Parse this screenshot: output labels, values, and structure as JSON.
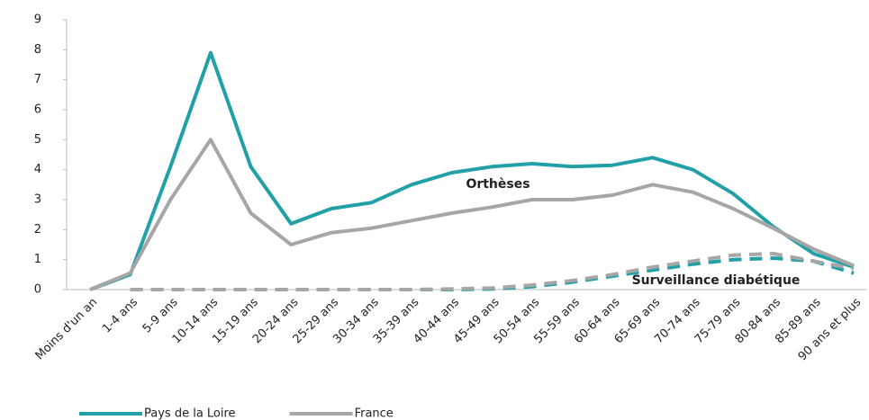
{
  "chart_data": {
    "type": "line",
    "categories": [
      "Moins d'un an",
      "1-4 ans",
      "5-9 ans",
      "10-14 ans",
      "15-19 ans",
      "20-24 ans",
      "25-29 ans",
      "30-34 ans",
      "35-39 ans",
      "40-44 ans",
      "45-49 ans",
      "50-54 ans",
      "55-59 ans",
      "60-64 ans",
      "65-69 ans",
      "70-74 ans",
      "75-79 ans",
      "80-84 ans",
      "85-89 ans",
      "90 ans et plus"
    ],
    "series": [
      {
        "name": "Pays de la Loire",
        "color": "#22a0a8",
        "dashed": false,
        "values": [
          0,
          0.5,
          4.1,
          7.9,
          4.1,
          2.2,
          2.7,
          2.9,
          3.5,
          3.9,
          4.1,
          4.2,
          4.1,
          4.15,
          4.4,
          4.0,
          3.2,
          2.1,
          1.2,
          0.75
        ]
      },
      {
        "name": "France",
        "color": "#a6a6a6",
        "dashed": false,
        "values": [
          0,
          0.55,
          3.0,
          5.0,
          2.55,
          1.5,
          1.9,
          2.05,
          2.3,
          2.55,
          2.75,
          3.0,
          3.0,
          3.15,
          3.5,
          3.25,
          2.7,
          2.05,
          1.35,
          0.8
        ]
      },
      {
        "color": "#22a0a8",
        "dashed": true,
        "values": [
          null,
          0,
          0,
          0,
          0,
          0,
          0,
          0,
          0,
          0,
          0.02,
          0.1,
          0.25,
          0.45,
          0.65,
          0.85,
          1.0,
          1.05,
          0.95,
          0.55
        ]
      },
      {
        "color": "#a6a6a6",
        "dashed": true,
        "values": [
          null,
          0,
          0,
          0,
          0,
          0,
          0,
          0,
          0,
          0.02,
          0.05,
          0.15,
          0.3,
          0.5,
          0.75,
          0.95,
          1.15,
          1.2,
          0.95,
          0.7
        ]
      }
    ],
    "annotations": [
      "Orthèses",
      "Surveillance diabétique"
    ],
    "ylim": [
      0,
      9
    ],
    "yticks": [
      0,
      1,
      2,
      3,
      4,
      5,
      6,
      7,
      8,
      9
    ],
    "grid": false
  }
}
